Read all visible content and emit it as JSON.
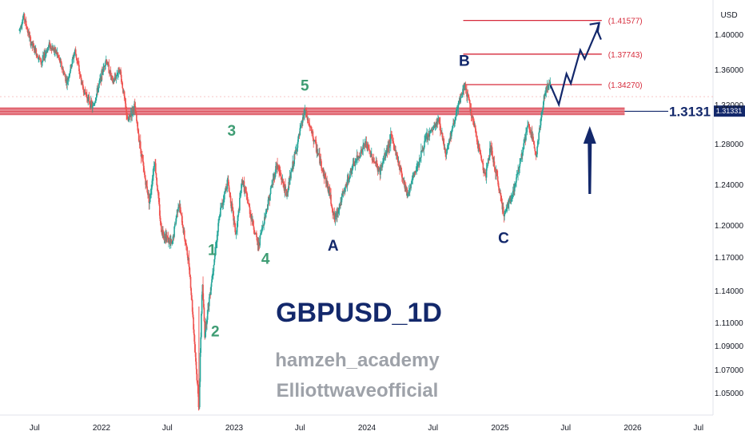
{
  "chart_data": {
    "type": "candlestick",
    "title": "GBPUSD_1D",
    "watermarks": [
      "hamzeh_academy",
      "Elliottwaveofficial"
    ],
    "currency": "USD",
    "y_axis": {
      "ticks": [
        "1.40000",
        "1.36000",
        "1.32000",
        "1.28000",
        "1.24000",
        "1.20000",
        "1.17000",
        "1.14000",
        "1.11000",
        "1.09000",
        "1.07000",
        "1.05000"
      ]
    },
    "x_axis": {
      "ticks": [
        "Jul",
        "2022",
        "Jul",
        "2023",
        "Jul",
        "2024",
        "Jul",
        "2025",
        "Jul",
        "2026",
        "Jul"
      ]
    },
    "price_path": [
      [
        "2021-05-20",
        1.405
      ],
      [
        "2021-06-01",
        1.421
      ],
      [
        "2021-06-20",
        1.391
      ],
      [
        "2021-07-20",
        1.368
      ],
      [
        "2021-08-10",
        1.388
      ],
      [
        "2021-09-01",
        1.378
      ],
      [
        "2021-09-28",
        1.345
      ],
      [
        "2021-10-20",
        1.382
      ],
      [
        "2021-11-10",
        1.339
      ],
      [
        "2021-12-08",
        1.316
      ],
      [
        "2022-01-13",
        1.372
      ],
      [
        "2022-02-01",
        1.345
      ],
      [
        "2022-02-20",
        1.361
      ],
      [
        "2022-03-14",
        1.302
      ],
      [
        "2022-04-01",
        1.319
      ],
      [
        "2022-04-28",
        1.251
      ],
      [
        "2022-05-13",
        1.223
      ],
      [
        "2022-05-27",
        1.265
      ],
      [
        "2022-06-14",
        1.196
      ],
      [
        "2022-07-14",
        1.181
      ],
      [
        "2022-08-01",
        1.223
      ],
      [
        "2022-08-31",
        1.16
      ],
      [
        "2022-09-26",
        1.035
      ],
      [
        "2022-10-05",
        1.148
      ],
      [
        "2022-10-12",
        1.1
      ],
      [
        "2022-11-24",
        1.214
      ],
      [
        "2022-12-14",
        1.244
      ],
      [
        "2023-01-06",
        1.19
      ],
      [
        "2023-01-23",
        1.245
      ],
      [
        "2023-03-08",
        1.18
      ],
      [
        "2023-04-28",
        1.26
      ],
      [
        "2023-05-25",
        1.23
      ],
      [
        "2023-07-14",
        1.314
      ],
      [
        "2023-08-18",
        1.272
      ],
      [
        "2023-09-20",
        1.232
      ],
      [
        "2023-10-04",
        1.205
      ],
      [
        "2023-11-20",
        1.255
      ],
      [
        "2023-12-28",
        1.28
      ],
      [
        "2024-02-05",
        1.252
      ],
      [
        "2024-03-08",
        1.287
      ],
      [
        "2024-04-22",
        1.23
      ],
      [
        "2024-06-12",
        1.285
      ],
      [
        "2024-07-17",
        1.304
      ],
      [
        "2024-08-05",
        1.27
      ],
      [
        "2024-09-26",
        1.343
      ],
      [
        "2024-10-22",
        1.297
      ],
      [
        "2024-11-22",
        1.247
      ],
      [
        "2024-12-06",
        1.277
      ],
      [
        "2025-01-13",
        1.21
      ],
      [
        "2025-02-10",
        1.237
      ],
      [
        "2025-03-20",
        1.3
      ],
      [
        "2025-04-11",
        1.27
      ],
      [
        "2025-05-05",
        1.335
      ],
      [
        "2025-05-20",
        1.345
      ]
    ],
    "projection_path": [
      [
        "2025-05-20",
        1.342
      ],
      [
        "2025-06-12",
        1.32
      ],
      [
        "2025-07-03",
        1.355
      ],
      [
        "2025-07-15",
        1.344
      ],
      [
        "2025-08-10",
        1.382
      ],
      [
        "2025-08-22",
        1.372
      ],
      [
        "2025-09-25",
        1.405
      ],
      [
        "2025-10-06",
        1.394
      ]
    ],
    "support_level": 1.3131,
    "support_label": "1.3131",
    "current_price_badge": "1.31331",
    "fib_levels": [
      {
        "value": 1.41577,
        "label": "(1.41577)"
      },
      {
        "value": 1.37743,
        "label": "(1.37743)"
      },
      {
        "value": 1.3427,
        "label": "(1.34270)"
      }
    ],
    "wave_labels": [
      {
        "text": "1",
        "date": "2022-11-01",
        "price": 1.172,
        "color": "green"
      },
      {
        "text": "2",
        "date": "2022-11-10",
        "price": 1.098,
        "color": "green"
      },
      {
        "text": "3",
        "date": "2022-12-25",
        "price": 1.288,
        "color": "green"
      },
      {
        "text": "4",
        "date": "2023-03-28",
        "price": 1.164,
        "color": "green"
      },
      {
        "text": "5",
        "date": "2023-07-14",
        "price": 1.336,
        "color": "green"
      },
      {
        "text": "A",
        "date": "2023-09-30",
        "price": 1.176,
        "color": "blue"
      },
      {
        "text": "B",
        "date": "2024-09-25",
        "price": 1.364,
        "color": "blue"
      },
      {
        "text": "C",
        "date": "2025-01-11",
        "price": 1.183,
        "color": "blue"
      }
    ],
    "arrow_up_at": "2025-09-05",
    "grid": false,
    "colors": {
      "up": "#26a69a",
      "down": "#ef5350",
      "fib": "#d62a3a",
      "support": "#d62a3a",
      "wave_green": "#3f9d74",
      "wave_blue": "#13286b",
      "badge": "#13286b"
    }
  }
}
